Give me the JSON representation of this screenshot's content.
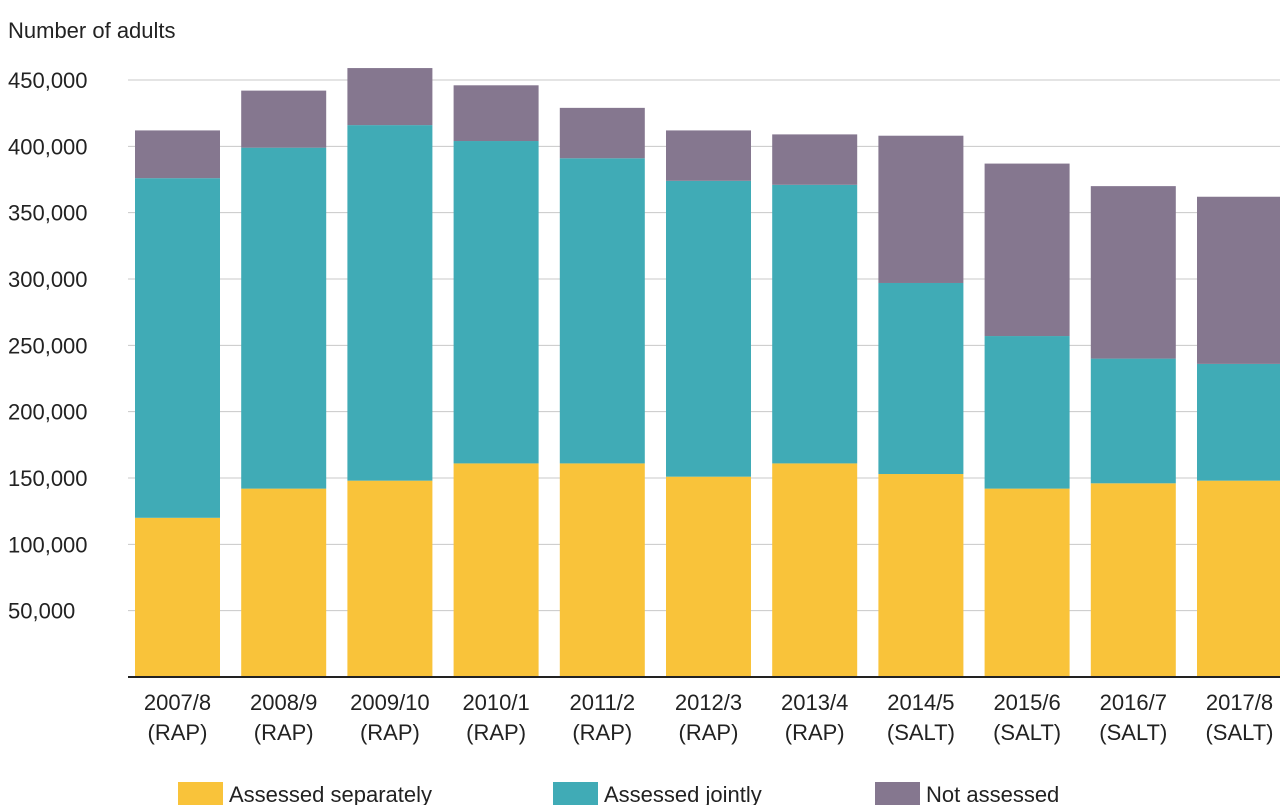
{
  "chart_data": {
    "type": "bar",
    "stacked": true,
    "ylabel": "Number of adults",
    "xlabel": "",
    "ylim": [
      0,
      450000
    ],
    "yticks": [
      50000,
      100000,
      150000,
      200000,
      250000,
      300000,
      350000,
      400000,
      450000
    ],
    "ytick_labels": [
      "50,000",
      "100,000",
      "150,000",
      "200,000",
      "250,000",
      "300,000",
      "350,000",
      "400,000",
      "450,000"
    ],
    "grid": true,
    "legend_position": "bottom",
    "categories": [
      [
        "2007/8",
        "(RAP)"
      ],
      [
        "2008/9",
        "(RAP)"
      ],
      [
        "2009/10",
        "(RAP)"
      ],
      [
        "2010/1",
        "(RAP)"
      ],
      [
        "2011/2",
        "(RAP)"
      ],
      [
        "2012/3",
        "(RAP)"
      ],
      [
        "2013/4",
        "(RAP)"
      ],
      [
        "2014/5",
        "(SALT)"
      ],
      [
        "2015/6",
        "(SALT)"
      ],
      [
        "2016/7",
        "(SALT)"
      ],
      [
        "2017/8",
        "(SALT)"
      ]
    ],
    "series": [
      {
        "name": "Assessed separately",
        "color": "#f9c33a",
        "values": [
          120000,
          142000,
          148000,
          161000,
          161000,
          151000,
          161000,
          153000,
          142000,
          146000,
          148000
        ]
      },
      {
        "name": "Assessed jointly",
        "color": "#40abb6",
        "values": [
          256000,
          257000,
          268000,
          243000,
          230000,
          223000,
          210000,
          144000,
          115000,
          94000,
          88000
        ]
      },
      {
        "name": "Not assessed",
        "color": "#85778f",
        "values": [
          36000,
          43000,
          43000,
          42000,
          38000,
          38000,
          38000,
          111000,
          130000,
          130000,
          126000
        ]
      }
    ]
  }
}
